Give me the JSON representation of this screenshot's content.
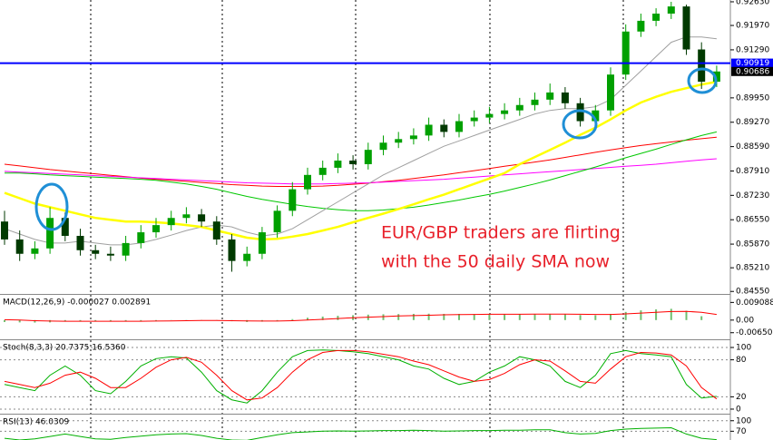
{
  "chart_data": [
    {
      "type": "candlestick",
      "categories": [
        null,
        null,
        null,
        null,
        null,
        null,
        null,
        null,
        null,
        null,
        null,
        null,
        null,
        null,
        null,
        null,
        null,
        null,
        null,
        null,
        null,
        null,
        null,
        null,
        null,
        null,
        null,
        null,
        null,
        null,
        null,
        null,
        null,
        null,
        null,
        null,
        null,
        null,
        null,
        null,
        null,
        null,
        null,
        null,
        null,
        null,
        null,
        null
      ],
      "open": [
        0.865,
        0.86,
        0.856,
        0.8575,
        0.866,
        0.861,
        0.857,
        0.856,
        0.8555,
        0.859,
        0.862,
        0.864,
        0.866,
        0.867,
        0.865,
        0.86,
        0.854,
        0.856,
        0.862,
        0.868,
        0.874,
        0.878,
        0.88,
        0.882,
        0.881,
        0.885,
        0.887,
        0.888,
        0.889,
        0.892,
        0.89,
        0.893,
        0.894,
        0.895,
        0.896,
        0.8975,
        0.899,
        0.901,
        0.898,
        0.893,
        0.896,
        0.906,
        0.918,
        0.921,
        0.923,
        0.925,
        0.913,
        0.904
      ],
      "high": [
        0.868,
        0.8625,
        0.8595,
        0.869,
        0.8675,
        0.863,
        0.8585,
        0.858,
        0.861,
        0.864,
        0.866,
        0.868,
        0.869,
        0.8685,
        0.8665,
        0.8615,
        0.858,
        0.8635,
        0.8695,
        0.876,
        0.88,
        0.882,
        0.884,
        0.8835,
        0.887,
        0.889,
        0.89,
        0.891,
        0.894,
        0.8935,
        0.895,
        0.896,
        0.897,
        0.898,
        0.8995,
        0.901,
        0.9035,
        0.9025,
        0.8995,
        0.8975,
        0.908,
        0.92,
        0.923,
        0.9245,
        0.9263,
        0.9255,
        0.915,
        0.9085
      ],
      "low": [
        0.8585,
        0.854,
        0.8545,
        0.856,
        0.8595,
        0.8555,
        0.8545,
        0.854,
        0.854,
        0.8575,
        0.8605,
        0.8625,
        0.8645,
        0.8635,
        0.8585,
        0.851,
        0.8525,
        0.8545,
        0.8605,
        0.8665,
        0.8725,
        0.8765,
        0.8785,
        0.8795,
        0.8795,
        0.8835,
        0.8855,
        0.8865,
        0.8875,
        0.8885,
        0.8885,
        0.8915,
        0.8925,
        0.8935,
        0.8945,
        0.896,
        0.8975,
        0.8965,
        0.8915,
        0.8915,
        0.8945,
        0.9045,
        0.9165,
        0.9195,
        0.9215,
        0.9115,
        0.902,
        0.9025
      ],
      "close": [
        0.86,
        0.856,
        0.8575,
        0.866,
        0.861,
        0.857,
        0.856,
        0.8555,
        0.859,
        0.862,
        0.864,
        0.866,
        0.867,
        0.865,
        0.86,
        0.854,
        0.856,
        0.862,
        0.868,
        0.874,
        0.878,
        0.88,
        0.882,
        0.881,
        0.885,
        0.887,
        0.888,
        0.889,
        0.892,
        0.89,
        0.893,
        0.894,
        0.895,
        0.896,
        0.8975,
        0.899,
        0.901,
        0.898,
        0.893,
        0.896,
        0.906,
        0.918,
        0.921,
        0.923,
        0.925,
        0.913,
        0.904,
        0.90686
      ],
      "up_color": "#00a000",
      "down_color": "#003a00",
      "series": [
        {
          "color": "#ff0000",
          "values": [
            0.881,
            0.8805,
            0.88,
            0.8795,
            0.8791,
            0.8787,
            0.8783,
            0.8779,
            0.8775,
            0.8771,
            0.8768,
            0.8765,
            0.8762,
            0.8759,
            0.8756,
            0.8753,
            0.8751,
            0.8749,
            0.8748,
            0.8748,
            0.8748,
            0.8749,
            0.8751,
            0.8754,
            0.8757,
            0.8761,
            0.8765,
            0.877,
            0.8775,
            0.878,
            0.8786,
            0.8792,
            0.8798,
            0.8804,
            0.881,
            0.8816,
            0.8822,
            0.8829,
            0.8836,
            0.8843,
            0.885,
            0.8856,
            0.8862,
            0.8867,
            0.8872,
            0.8877,
            0.8881,
            0.8885
          ]
        },
        {
          "color": "#ff00ff",
          "values": [
            0.879,
            0.8788,
            0.8786,
            0.8784,
            0.8782,
            0.878,
            0.8778,
            0.8776,
            0.8774,
            0.8772,
            0.877,
            0.8768,
            0.8766,
            0.8764,
            0.8762,
            0.876,
            0.8758,
            0.8757,
            0.8756,
            0.8755,
            0.8755,
            0.8755,
            0.8756,
            0.8757,
            0.8758,
            0.876,
            0.8762,
            0.8764,
            0.8766,
            0.8768,
            0.8771,
            0.8774,
            0.8777,
            0.878,
            0.8783,
            0.8786,
            0.8789,
            0.8792,
            0.8795,
            0.8798,
            0.8801,
            0.8804,
            0.8807,
            0.881,
            0.8814,
            0.8818,
            0.8822,
            0.8825
          ]
        },
        {
          "color": "#00c800",
          "values": [
            0.8785,
            0.8785,
            0.8783,
            0.878,
            0.8778,
            0.8776,
            0.8774,
            0.8772,
            0.877,
            0.8768,
            0.8765,
            0.876,
            0.8755,
            0.8748,
            0.874,
            0.873,
            0.872,
            0.8712,
            0.8705,
            0.8698,
            0.8692,
            0.8687,
            0.8683,
            0.868,
            0.868,
            0.8682,
            0.8686,
            0.869,
            0.8696,
            0.8703,
            0.871,
            0.8718,
            0.8726,
            0.8735,
            0.8745,
            0.8755,
            0.8766,
            0.8778,
            0.879,
            0.8802,
            0.8815,
            0.8828,
            0.884,
            0.8852,
            0.8865,
            0.8878,
            0.889,
            0.89
          ]
        },
        {
          "color": "#a0a0a0",
          "values": [
            0.863,
            0.8615,
            0.86,
            0.859,
            0.859,
            0.8595,
            0.859,
            0.8585,
            0.8585,
            0.859,
            0.86,
            0.8612,
            0.8625,
            0.8635,
            0.864,
            0.8635,
            0.862,
            0.861,
            0.8615,
            0.863,
            0.8655,
            0.868,
            0.8705,
            0.873,
            0.8755,
            0.878,
            0.88,
            0.882,
            0.884,
            0.886,
            0.8875,
            0.889,
            0.8905,
            0.892,
            0.8935,
            0.895,
            0.896,
            0.8965,
            0.8965,
            0.897,
            0.899,
            0.903,
            0.907,
            0.911,
            0.915,
            0.9165,
            0.9165,
            0.916
          ]
        },
        {
          "color": "#ffff00",
          "values": [
            0.873,
            0.8715,
            0.87,
            0.869,
            0.868,
            0.867,
            0.866,
            0.8655,
            0.865,
            0.865,
            0.8648,
            0.8645,
            0.864,
            0.8635,
            0.8625,
            0.8615,
            0.8605,
            0.86,
            0.8602,
            0.8608,
            0.8615,
            0.8625,
            0.8635,
            0.8648,
            0.866,
            0.8672,
            0.8685,
            0.8698,
            0.8712,
            0.8725,
            0.874,
            0.8755,
            0.877,
            0.8785,
            0.881,
            0.883,
            0.885,
            0.887,
            0.8892,
            0.8912,
            0.8935,
            0.896,
            0.8982,
            0.8998,
            0.9012,
            0.9022,
            0.9032,
            0.904
          ]
        }
      ],
      "ylim": [
        0.8448,
        0.9268
      ],
      "yticks": [
        {
          "value": 0.9263,
          "label": "0.92630"
        },
        {
          "value": 0.9197,
          "label": "0.91970"
        },
        {
          "value": 0.9129,
          "label": "0.91290"
        },
        {
          "value": 0.8995,
          "label": "0.89950"
        },
        {
          "value": 0.8927,
          "label": "0.89270"
        },
        {
          "value": 0.8859,
          "label": "0.88590"
        },
        {
          "value": 0.8791,
          "label": "0.87910"
        },
        {
          "value": 0.8723,
          "label": "0.87230"
        },
        {
          "value": 0.8655,
          "label": "0.86550"
        },
        {
          "value": 0.8587,
          "label": "0.85870"
        },
        {
          "value": 0.8521,
          "label": "0.85210"
        },
        {
          "value": 0.8455,
          "label": "0.84550"
        }
      ],
      "price_labels": [
        {
          "value": 0.90919,
          "color": "#0000ff",
          "line": true
        },
        {
          "value": 0.90686,
          "color": "#000000",
          "line": false
        }
      ],
      "annotations": [
        "EUR/GBP traders are flirting",
        "with the 50 daily SMA now"
      ],
      "annotation_color": "#e8202a"
    },
    {
      "type": "macd",
      "title": "MACD(12,26,9) -0.000027 0.002891",
      "ylim": [
        -0.0099,
        0.013
      ],
      "yticks": [
        0.009088,
        {
          "value": 0,
          "label": "0.00"
        },
        -0.006503
      ],
      "histogram": {
        "color": "#70c070",
        "values": [
          -0.001,
          -0.0012,
          -0.0013,
          -0.0012,
          -0.0008,
          -0.0006,
          -0.0007,
          -0.0008,
          -0.0007,
          -0.0005,
          -0.0003,
          -0.0001,
          0.0001,
          0.0001,
          -0.0001,
          -0.0006,
          -0.001,
          -0.0008,
          -0.0003,
          0.0005,
          0.0012,
          0.0018,
          0.0022,
          0.0025,
          0.0028,
          0.003,
          0.0031,
          0.0032,
          0.0033,
          0.0032,
          0.0032,
          0.0031,
          0.0031,
          0.0031,
          0.0031,
          0.0031,
          0.0032,
          0.003,
          0.0026,
          0.0025,
          0.0032,
          0.0042,
          0.005,
          0.0055,
          0.0058,
          0.0048,
          0.002,
          -2.7e-05
        ]
      },
      "series": [
        {
          "color": "#ff0000",
          "values": [
            0.0002,
            0.0,
            -0.0003,
            -0.0005,
            -0.0006,
            -0.0006,
            -0.0006,
            -0.0006,
            -0.0006,
            -0.0006,
            -0.0005,
            -0.0004,
            -0.0003,
            -0.0002,
            -0.0002,
            -0.0003,
            -0.0004,
            -0.0005,
            -0.0005,
            -0.0003,
            0.0,
            0.0004,
            0.0008,
            0.0012,
            0.0015,
            0.0018,
            0.0021,
            0.0023,
            0.0025,
            0.0027,
            0.0028,
            0.0029,
            0.003,
            0.003,
            0.003,
            0.0031,
            0.0031,
            0.0031,
            0.003,
            0.0029,
            0.0029,
            0.0032,
            0.0036,
            0.004,
            0.0044,
            0.0045,
            0.004,
            0.002891
          ]
        }
      ]
    },
    {
      "type": "line",
      "title": "Stoch(8,3,3) 20.7375 16.5360",
      "ylim": [
        -7.4,
        111.8
      ],
      "yticks": [
        100,
        80,
        20,
        0
      ],
      "grid": true,
      "series": [
        {
          "color": "#00b000",
          "values": [
            40,
            35,
            30,
            55,
            70,
            55,
            30,
            25,
            45,
            70,
            82,
            85,
            83,
            60,
            30,
            15,
            10,
            30,
            60,
            85,
            95,
            96,
            95,
            93,
            90,
            85,
            80,
            70,
            65,
            50,
            40,
            45,
            60,
            70,
            85,
            80,
            70,
            45,
            35,
            55,
            90,
            95,
            90,
            88,
            85,
            40,
            18,
            20.7375
          ]
        },
        {
          "color": "#ff0000",
          "values": [
            45,
            40,
            35,
            42,
            55,
            60,
            50,
            35,
            35,
            50,
            68,
            80,
            84,
            76,
            55,
            30,
            15,
            18,
            35,
            60,
            80,
            92,
            95,
            95,
            93,
            89,
            85,
            78,
            72,
            62,
            52,
            45,
            48,
            58,
            72,
            80,
            78,
            62,
            45,
            42,
            65,
            85,
            92,
            91,
            88,
            70,
            35,
            16.536
          ]
        }
      ]
    },
    {
      "type": "line",
      "title": "RSI(13) 46.0309",
      "ylim": [
        45,
        117.5
      ],
      "yticks": [
        100,
        70
      ],
      "grid": true,
      "series": [
        {
          "color": "#00b000",
          "values": [
            50,
            45,
            48,
            55,
            62,
            55,
            48,
            47,
            52,
            56,
            60,
            62,
            63,
            58,
            50,
            45,
            44,
            52,
            60,
            66,
            68,
            70,
            71,
            70,
            71,
            72,
            72,
            73,
            72,
            70,
            71,
            72,
            72,
            73,
            73,
            74,
            74,
            66,
            62,
            64,
            72,
            76,
            78,
            79,
            80,
            62,
            50,
            46.0309
          ]
        }
      ]
    }
  ]
}
